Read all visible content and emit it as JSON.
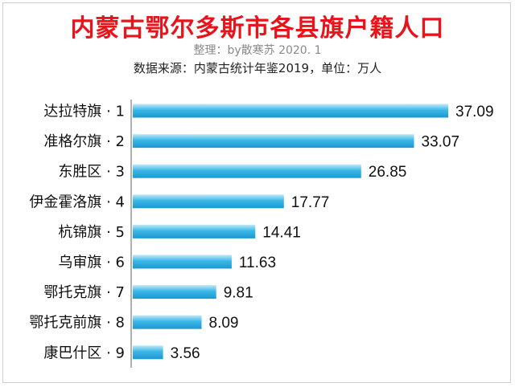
{
  "header": {
    "title": "内蒙古鄂尔多斯市各县旗户籍人口",
    "subtitle": "整理：by散寒苏 2020. 1",
    "source": "数据来源：内蒙古统计年鉴2019，单位：万人"
  },
  "colors": {
    "title": "#e8141b",
    "bar_light": "#bfe9f8",
    "bar_mid": "#3ab7e8",
    "bar_dark": "#1c97d0"
  },
  "chart_data": {
    "type": "bar",
    "orientation": "horizontal",
    "title": "内蒙古鄂尔多斯市各县旗户籍人口",
    "categories": [
      "达拉特旗 · 1",
      "准格尔旗 · 2",
      "东胜区 · 3",
      "伊金霍洛旗 · 4",
      "杭锦旗 · 5",
      "乌审旗 · 6",
      "鄂托克旗 · 7",
      "鄂托克前旗 · 8",
      "康巴什区 · 9"
    ],
    "values": [
      37.09,
      33.07,
      26.85,
      17.77,
      14.41,
      11.63,
      9.81,
      8.09,
      3.56
    ],
    "value_labels": [
      "37.09",
      "33.07",
      "26.85",
      "17.77",
      "14.41",
      "11.63",
      "9.81",
      "8.09",
      "3.56"
    ],
    "xlim": [
      0,
      37.09
    ],
    "grid": false,
    "legend": "none"
  }
}
